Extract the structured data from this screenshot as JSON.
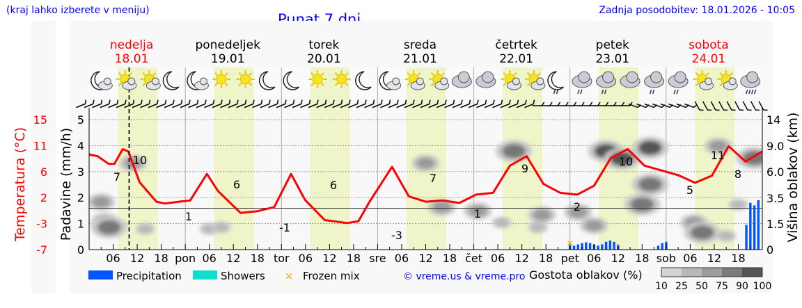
{
  "header": {
    "location_hint": "(kraj lahko izberete v meniju)",
    "title": "Punat 7 dni",
    "last_update": "Zadnja posodobitev: 18.01.2026 - 10:05"
  },
  "days": [
    {
      "name": "nedelja",
      "date": "18.01",
      "weekend": true
    },
    {
      "name": "ponedeljek",
      "date": "19.01",
      "weekend": false
    },
    {
      "name": "torek",
      "date": "20.01",
      "weekend": false
    },
    {
      "name": "sreda",
      "date": "21.01",
      "weekend": false
    },
    {
      "name": "četrtek",
      "date": "22.01",
      "weekend": false
    },
    {
      "name": "petek",
      "date": "23.01",
      "weekend": false
    },
    {
      "name": "sobota",
      "date": "24.01",
      "weekend": true
    }
  ],
  "icons": [
    "moon-cloud",
    "sun-cloud",
    "sun-cloud",
    "moon",
    "moon-cloud",
    "sun",
    "sun",
    "moon",
    "moon",
    "sun",
    "sun",
    "moon",
    "moon-cloud",
    "sun-cloud",
    "sun-cloud",
    "cloud",
    "cloud",
    "sun-cloud",
    "sun-cloud",
    "moon-snow",
    "cloud-snow",
    "cloud-rain",
    "cloud",
    "cloud-rain",
    "cloud-rain",
    "sun-cloud",
    "sun-cloud",
    "cloud-heavy-rain"
  ],
  "colors": {
    "temperature": "#ff0000",
    "precipitation": "#0055ff",
    "showers": "#11ddcc",
    "frozen": "#f5a800",
    "daylight": "#eff5c8",
    "weekend": "#ff0000"
  },
  "chart_data": {
    "type": "line",
    "title": "Punat 7 dni",
    "x_unit": "hours from 18.01 00:00",
    "xlim": [
      0,
      168
    ],
    "x_tick_labels": [
      "06",
      "12",
      "18",
      "pon",
      "06",
      "12",
      "18",
      "tor",
      "06",
      "12",
      "18",
      "sre",
      "06",
      "12",
      "18",
      "čet",
      "06",
      "12",
      "18",
      "pet",
      "06",
      "12",
      "18",
      "sob",
      "06",
      "12",
      "18"
    ],
    "current_time_hour": 10,
    "temperature": {
      "label": "Temperatura (°C)",
      "ticks": [
        "15",
        "11",
        "6",
        "2",
        "-3",
        "-7"
      ],
      "ylim": [
        -7,
        15
      ],
      "points": [
        [
          0,
          9.1
        ],
        [
          3,
          8.8
        ],
        [
          7,
          7.5
        ],
        [
          9,
          7.5
        ],
        [
          12,
          10
        ],
        [
          14,
          9.6
        ],
        [
          18,
          4.4
        ],
        [
          24,
          1.1
        ],
        [
          27,
          0.8
        ],
        [
          32,
          1.1
        ],
        [
          36,
          1.3
        ],
        [
          42,
          5.8
        ],
        [
          46,
          2.9
        ],
        [
          54,
          -0.8
        ],
        [
          60,
          -0.5
        ],
        [
          66,
          0.2
        ],
        [
          72,
          5.8
        ],
        [
          77,
          1.4
        ],
        [
          84,
          -2
        ],
        [
          92,
          -2.5
        ],
        [
          96,
          -2.2
        ],
        [
          100,
          1.1
        ],
        [
          108,
          7
        ],
        [
          114,
          2
        ],
        [
          120,
          1.1
        ],
        [
          126,
          1.3
        ],
        [
          132,
          0.9
        ],
        [
          138,
          2.3
        ],
        [
          144,
          2.6
        ],
        [
          150,
          7.2
        ],
        [
          156,
          8.8
        ],
        [
          162,
          4.1
        ],
        [
          168,
          2.6
        ],
        [
          174,
          2.3
        ],
        [
          180,
          3.8
        ],
        [
          186,
          8.5
        ],
        [
          192,
          10
        ],
        [
          198,
          7.2
        ],
        [
          204,
          6.4
        ],
        [
          210,
          5.6
        ],
        [
          216,
          4.3
        ],
        [
          222,
          5.5
        ],
        [
          228,
          10.5
        ],
        [
          234,
          7.9
        ],
        [
          240,
          9.6
        ]
      ],
      "data_labels": [
        {
          "h": 7,
          "t": "7"
        },
        {
          "h": 13,
          "t": "10"
        },
        {
          "h": 25,
          "t": "1"
        },
        {
          "h": 37,
          "t": "6"
        },
        {
          "h": 49,
          "t": "-1"
        },
        {
          "h": 61,
          "t": "6"
        },
        {
          "h": 77,
          "t": "-3"
        },
        {
          "h": 86,
          "t": "7"
        },
        {
          "h": 97,
          "t": "1"
        },
        {
          "h": 109,
          "t": "9"
        },
        {
          "h": 122,
          "t": "2"
        },
        {
          "h": 134,
          "t": "10"
        },
        {
          "h": 150,
          "t": "5"
        },
        {
          "h": 157,
          "t": "11"
        },
        {
          "h": 162,
          "t": "8"
        }
      ]
    },
    "precipitation": {
      "label": "Padavine (mm/h)",
      "ticks": [
        "0",
        "1",
        "2",
        "3",
        "4",
        "5"
      ],
      "ylim": [
        0,
        5.5
      ],
      "bars": [
        [
          120,
          0.15
        ],
        [
          121,
          0.15
        ],
        [
          122,
          0.2
        ],
        [
          123,
          0.25
        ],
        [
          124,
          0.28
        ],
        [
          125,
          0.25
        ],
        [
          126,
          0.2
        ],
        [
          127,
          0.15
        ],
        [
          128,
          0.2
        ],
        [
          129,
          0.3
        ],
        [
          130,
          0.35
        ],
        [
          131,
          0.3
        ],
        [
          132,
          0.15
        ],
        [
          142,
          0.15
        ],
        [
          143,
          0.25
        ],
        [
          144,
          0.3
        ],
        [
          164,
          0.95
        ],
        [
          165,
          1.8
        ],
        [
          166,
          1.7
        ],
        [
          167,
          1.9
        ]
      ],
      "frozen_mix": [
        120
      ]
    },
    "cloud_height": {
      "label": "Višina oblakov (km)",
      "ticks": [
        "0",
        "1.5",
        "3.5",
        "6.0",
        "9.0",
        "14"
      ],
      "tick_values": [
        0,
        1.5,
        3.5,
        6,
        9,
        14
      ],
      "cells": [
        [
          3,
          3.2,
          50
        ],
        [
          4,
          1.7,
          50
        ],
        [
          5,
          1.3,
          75
        ],
        [
          11,
          7,
          50
        ],
        [
          14,
          1.2,
          25
        ],
        [
          30,
          1.2,
          25
        ],
        [
          33,
          1.3,
          25
        ],
        [
          84,
          7,
          50
        ],
        [
          88,
          2.8,
          50
        ],
        [
          97,
          2.5,
          50
        ],
        [
          103,
          1.6,
          25
        ],
        [
          106,
          8.4,
          75
        ],
        [
          112,
          1.3,
          25
        ],
        [
          113,
          2.2,
          50
        ],
        [
          122,
          2.4,
          50
        ],
        [
          126,
          1.4,
          50
        ],
        [
          129,
          8.4,
          90
        ],
        [
          133,
          7.5,
          90
        ],
        [
          140,
          8.8,
          90
        ],
        [
          138,
          3,
          75
        ],
        [
          140,
          4.8,
          75
        ],
        [
          151,
          1.6,
          50
        ],
        [
          153,
          1,
          75
        ],
        [
          157,
          9,
          50
        ],
        [
          166,
          7.6,
          75
        ],
        [
          162,
          3,
          25
        ],
        [
          159,
          0.8,
          25
        ]
      ],
      "density_label": "Gostota oblakov (%)",
      "density_levels": [
        "10",
        "25",
        "50",
        "75",
        "90",
        "100"
      ]
    },
    "legend": [
      {
        "name": "Precipitation"
      },
      {
        "name": "Showers"
      },
      {
        "name": "Frozen mix"
      }
    ]
  },
  "footer": {
    "copyright": "© vreme.us & vreme.pro"
  }
}
